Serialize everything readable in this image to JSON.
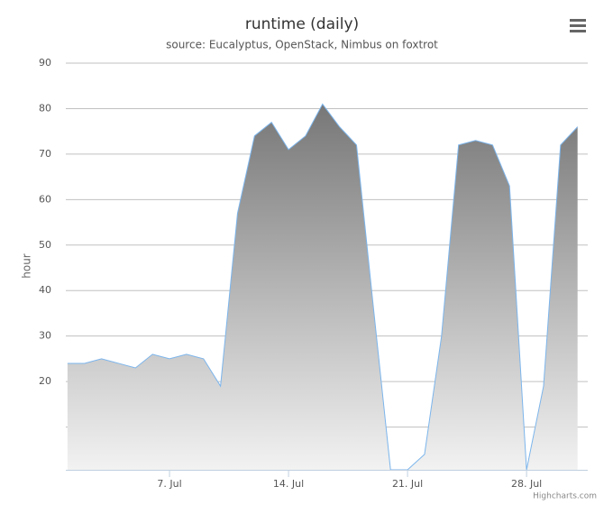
{
  "chart_data": {
    "type": "area",
    "title": "runtime (daily)",
    "subtitle": "source: Eucalyptus, OpenStack, Nimbus on foxtrot",
    "y_label": "hour",
    "credits": "Highcharts.com",
    "x": [
      1,
      2,
      3,
      4,
      5,
      6,
      7,
      8,
      9,
      10,
      11,
      12,
      13,
      14,
      15,
      16,
      17,
      18,
      19,
      20,
      21,
      22,
      23,
      24,
      25,
      26,
      27,
      28,
      29,
      30,
      31
    ],
    "series": [
      {
        "name": "runtime",
        "color": "#7cb5ec",
        "values": [
          24,
          24,
          25,
          24,
          23,
          26,
          25,
          26,
          25,
          19,
          57,
          74,
          77,
          71,
          74,
          81,
          76,
          72,
          36,
          0,
          0,
          4,
          30,
          72,
          73,
          72,
          63,
          0,
          19,
          72,
          76
        ]
      }
    ],
    "xlim": [
      0.9,
      31.6
    ],
    "xticks": [
      {
        "value": 7,
        "label": "7. Jul"
      },
      {
        "value": 14,
        "label": "14. Jul"
      },
      {
        "value": 21,
        "label": "21. Jul"
      },
      {
        "value": 28,
        "label": "28. Jul"
      }
    ],
    "ylim": [
      0.6,
      90
    ],
    "yticks": [
      20,
      30,
      40,
      50,
      60,
      70,
      80,
      90
    ],
    "y_gridlines": [
      10,
      20,
      30,
      40,
      50,
      60,
      70,
      80,
      90
    ],
    "grid": true
  }
}
